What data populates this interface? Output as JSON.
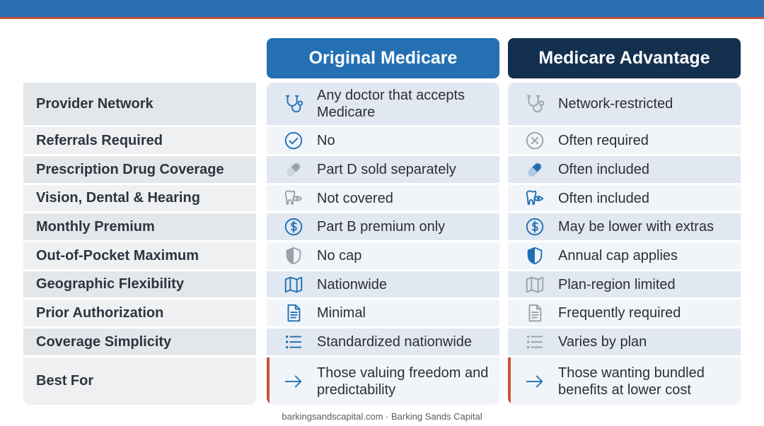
{
  "header": {
    "original": "Original Medicare",
    "advantage": "Medicare Advantage"
  },
  "rows": [
    {
      "label": "Provider Network",
      "original": "Any doctor that accepts Medicare",
      "advantage": "Network-restricted",
      "original_icon": "stethoscope-icon",
      "advantage_icon": "stethoscope-icon"
    },
    {
      "label": "Referrals Required",
      "original": "No",
      "advantage": "Often required",
      "original_icon": "check-circle-icon",
      "advantage_icon": "x-circle-icon"
    },
    {
      "label": "Prescription Drug Coverage",
      "original": "Part D sold separately",
      "advantage": "Often included",
      "original_icon": "pill-icon",
      "advantage_icon": "pill-icon"
    },
    {
      "label": "Vision, Dental & Hearing",
      "original": "Not covered",
      "advantage": "Often included",
      "original_icon": "tooth-eye-icon",
      "advantage_icon": "tooth-eye-icon"
    },
    {
      "label": "Monthly Premium",
      "original": "Part B premium only",
      "advantage": "May be lower with extras",
      "original_icon": "dollar-circle-icon",
      "advantage_icon": "dollar-circle-icon"
    },
    {
      "label": "Out-of-Pocket Maximum",
      "original": "No cap",
      "advantage": "Annual cap applies",
      "original_icon": "shield-icon",
      "advantage_icon": "shield-icon"
    },
    {
      "label": "Geographic Flexibility",
      "original": "Nationwide",
      "advantage": "Plan-region limited",
      "original_icon": "map-icon",
      "advantage_icon": "map-icon"
    },
    {
      "label": "Prior Authorization",
      "original": "Minimal",
      "advantage": "Frequently required",
      "original_icon": "document-icon",
      "advantage_icon": "document-icon"
    },
    {
      "label": "Coverage Simplicity",
      "original": "Standardized nationwide",
      "advantage": "Varies by plan",
      "original_icon": "list-icon",
      "advantage_icon": "list-icon"
    },
    {
      "label": "Best For",
      "original": "Those valuing freedom and predictability",
      "advantage": "Those wanting bundled benefits at lower cost",
      "original_icon": "arrow-right-icon",
      "advantage_icon": "arrow-right-icon"
    }
  ],
  "colors": {
    "original_header": "#2470b3",
    "advantage_header": "#13304f",
    "top_bar": "#2a6db0",
    "accent": "#c9533d",
    "icon_active": "#1f6fb3",
    "icon_muted": "#9aa1a9"
  },
  "footer": "barkingsandscapital.com · Barking Sands Capital"
}
